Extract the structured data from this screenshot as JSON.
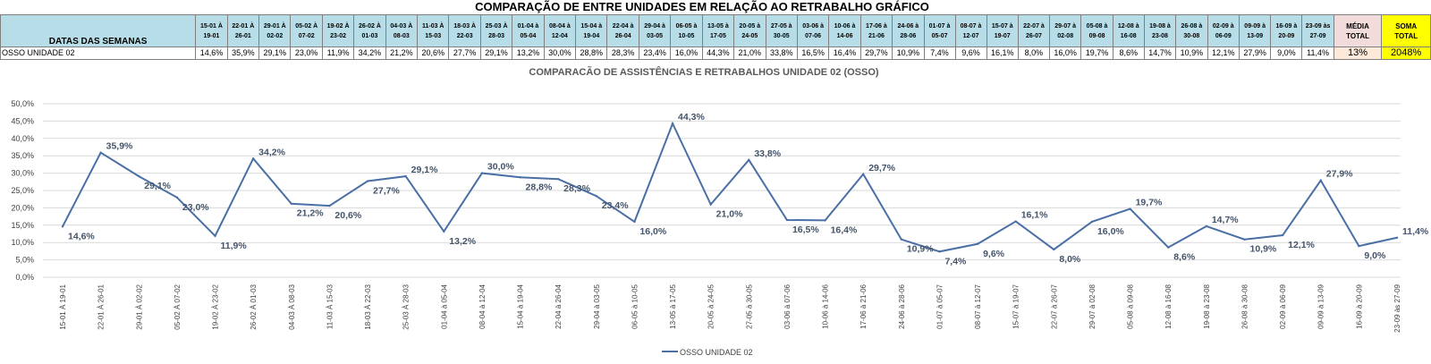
{
  "table": {
    "title": "COMPARAÇÃO DE ENTRE UNIDADES EM RELAÇÃO AO RETRABALHO GRÁFICO",
    "header_label": "DATAS DAS SEMANAS",
    "row_label": "OSSO UNIDADE 02",
    "weeks": [
      [
        "15-01 À",
        "19-01"
      ],
      [
        "22-01 À",
        "26-01"
      ],
      [
        "29-01 À",
        "02-02"
      ],
      [
        "05-02 À",
        "07-02"
      ],
      [
        "19-02 À",
        "23-02"
      ],
      [
        "26-02 À",
        "01-03"
      ],
      [
        "04-03 À",
        "08-03"
      ],
      [
        "11-03 À",
        "15-03"
      ],
      [
        "18-03 À",
        "22-03"
      ],
      [
        "25-03 À",
        "28-03"
      ],
      [
        "01-04 à",
        "05-04"
      ],
      [
        "08-04 à",
        "12-04"
      ],
      [
        "15-04 à",
        "19-04"
      ],
      [
        "22-04 à",
        "26-04"
      ],
      [
        "29-04 à",
        "03-05"
      ],
      [
        "06-05 à",
        "10-05"
      ],
      [
        "13-05 à",
        "17-05"
      ],
      [
        "20-05 à",
        "24-05"
      ],
      [
        "27-05 à",
        "30-05"
      ],
      [
        "03-06 à",
        "07-06"
      ],
      [
        "10-06 à",
        "14-06"
      ],
      [
        "17-06 à",
        "21-06"
      ],
      [
        "24-06 à",
        "28-06"
      ],
      [
        "01-07 à",
        "05-07"
      ],
      [
        "08-07 à",
        "12-07"
      ],
      [
        "15-07 à",
        "19-07"
      ],
      [
        "22-07 à",
        "26-07"
      ],
      [
        "29-07 à",
        "02-08"
      ],
      [
        "05-08 à",
        "09-08"
      ],
      [
        "12-08 à",
        "16-08"
      ],
      [
        "19-08 à",
        "23-08"
      ],
      [
        "26-08 à",
        "30-08"
      ],
      [
        "02-09 à",
        "06-09"
      ],
      [
        "09-09 à",
        "13-09"
      ],
      [
        "16-09 à",
        "20-09"
      ],
      [
        "23-09 às",
        "27-09"
      ]
    ],
    "row_values": [
      "14,6%",
      "35,9%",
      "29,1%",
      "23,0%",
      "11,9%",
      "34,2%",
      "21,2%",
      "20,6%",
      "27,7%",
      "29,1%",
      "13,2%",
      "30,0%",
      "28,8%",
      "28,3%",
      "23,4%",
      "16,0%",
      "44,3%",
      "21,0%",
      "33,8%",
      "16,5%",
      "16,4%",
      "29,7%",
      "10,9%",
      "7,4%",
      "9,6%",
      "16,1%",
      "8,0%",
      "16,0%",
      "19,7%",
      "8,6%",
      "14,7%",
      "10,9%",
      "12,1%",
      "27,9%",
      "9,0%",
      "11,4%"
    ],
    "media_label": [
      "MÉDIA",
      "TOTAL"
    ],
    "media_value": "13%",
    "soma_label": [
      "SOMA",
      "TOTAL"
    ],
    "soma_value": "2048%",
    "colors": {
      "header_bg": "#b7dee8",
      "media_bg": "#fde9d9",
      "soma_bg": "#ffff00"
    }
  },
  "chart_data": {
    "type": "line",
    "title": "COMPARACÃO DE ASSISTÊNCIAS E RETRABALHOS UNIDADE 02  (OSSO)",
    "categories": [
      "15-01 À 19-01",
      "22-01 À 26-01",
      "29-01 À 02-02",
      "05-02 À 07-02",
      "19-02 À 23-02",
      "26-02 À 01-03",
      "04-03 À 08-03",
      "11-03 À 15-03",
      "18-03 À 22-03",
      "25-03 À 28-03",
      "01-04 à 05-04",
      "08-04 à 12-04",
      "15-04 à 19-04",
      "22-04 à 26-04",
      "29-04 à 03-05",
      "06-05 à 10-05",
      "13-05 à 17-05",
      "20-05 à 24-05",
      "27-05 à 30-05",
      "03-06 à 07-06",
      "10-06 à 14-06",
      "17-06 à 21-06",
      "24-06 à 28-06",
      "01-07 à 05-07",
      "08-07 à 12-07",
      "15-07 à 19-07",
      "22-07 à 26-07",
      "29-07 à 02-08",
      "05-08 à 09-08",
      "12-08 à 16-08",
      "19-08 à 23-08",
      "26-08 à 30-08",
      "02-09 à 06-09",
      "09-09 à 13-09",
      "16-09 à 20-09",
      "23-09 às 27-09"
    ],
    "series": [
      {
        "name": "OSSO UNIDADE 02",
        "color": "#4a6fa5",
        "values": [
          14.6,
          35.9,
          29.1,
          23.0,
          11.9,
          34.2,
          21.2,
          20.6,
          27.7,
          29.1,
          13.2,
          30.0,
          28.8,
          28.3,
          23.4,
          16.0,
          44.3,
          21.0,
          33.8,
          16.5,
          16.4,
          29.7,
          10.9,
          7.4,
          9.6,
          16.1,
          8.0,
          16.0,
          19.7,
          8.6,
          14.7,
          10.9,
          12.1,
          27.9,
          9.0,
          11.4
        ],
        "labels": [
          "14,6%",
          "35,9%",
          "29,1%",
          "23,0%",
          "11,9%",
          "34,2%",
          "21,2%",
          "20,6%",
          "27,7%",
          "29,1%",
          "13,2%",
          "30,0%",
          "28,8%",
          "28,3%",
          "23,4%",
          "16,0%",
          "44,3%",
          "21,0%",
          "33,8%",
          "16,5%",
          "16,4%",
          "29,7%",
          "10,9%",
          "7,4%",
          "9,6%",
          "16,1%",
          "8,0%",
          "16,0%",
          "19,7%",
          "8,6%",
          "14,7%",
          "10,9%",
          "12,1%",
          "27,9%",
          "9,0%",
          "11,4%"
        ]
      }
    ],
    "yticks": [
      "0,0%",
      "5,0%",
      "10,0%",
      "15,0%",
      "20,0%",
      "25,0%",
      "30,0%",
      "35,0%",
      "40,0%",
      "45,0%",
      "50,0%"
    ],
    "ylim": [
      0,
      50
    ],
    "grid": true,
    "legend": "bottom-center"
  }
}
